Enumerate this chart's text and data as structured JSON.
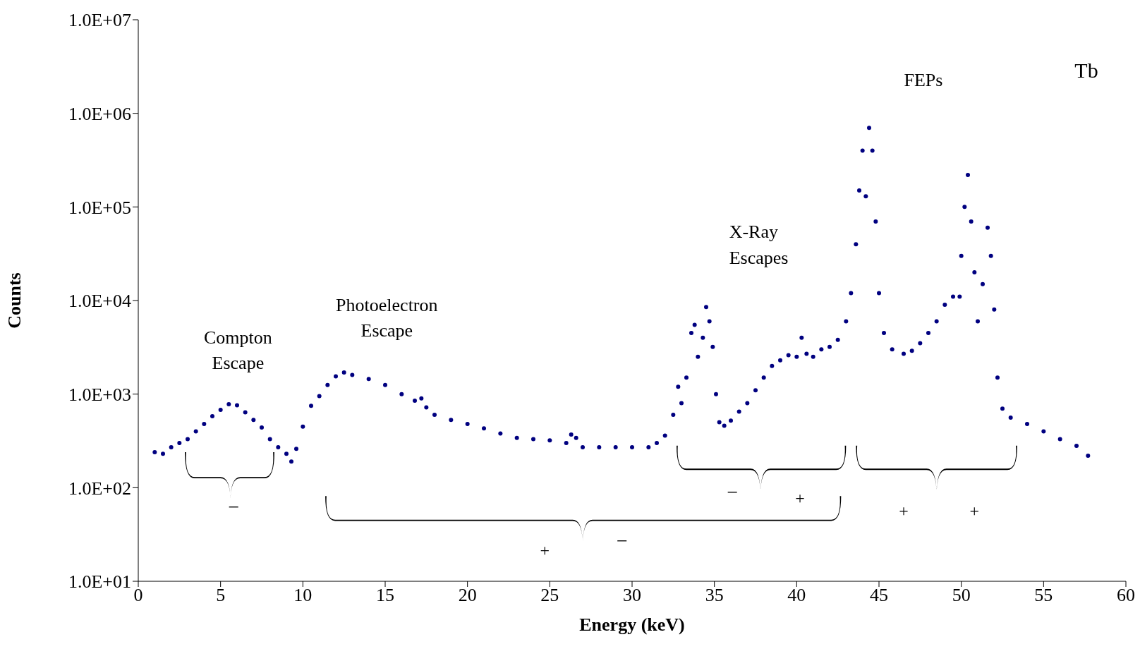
{
  "chart_data": {
    "type": "scatter",
    "xlabel": "Energy (keV)",
    "ylabel": "Counts",
    "log": "y",
    "grid": false,
    "legend": false,
    "marker": "circle",
    "xlim": [
      0,
      60
    ],
    "xticks": [
      0,
      5,
      10,
      15,
      20,
      25,
      30,
      35,
      40,
      45,
      50,
      55,
      60
    ],
    "ylim": [
      10,
      10000000
    ],
    "yticks": [
      {
        "value": 10,
        "label": "1.0E+01"
      },
      {
        "value": 100,
        "label": "1.0E+02"
      },
      {
        "value": 1000,
        "label": "1.0E+03"
      },
      {
        "value": 10000,
        "label": "1.0E+04"
      },
      {
        "value": 100000,
        "label": "1.0E+05"
      },
      {
        "value": 1000000,
        "label": "1.0E+06"
      },
      {
        "value": 10000000,
        "label": "1.0E+07"
      }
    ],
    "annotations": [
      "Compton Escape",
      "Photoelectron Escape",
      "X-Ray Escapes",
      "FEPs",
      "Tb",
      "−",
      "+",
      "−",
      "−",
      "+",
      "+",
      "+"
    ],
    "series": [
      {
        "color": "#000080",
        "x": [
          1.0,
          1.5,
          2.0,
          2.5,
          3.0,
          3.5,
          4.0,
          4.5,
          5.0,
          5.5,
          6.0,
          6.5,
          7.0,
          7.5,
          8.0,
          8.5,
          9.0,
          9.3,
          9.6,
          10.0,
          10.5,
          11.0,
          11.5,
          12.0,
          12.5,
          13.0,
          14.0,
          15.0,
          16.0,
          16.8,
          17.2,
          17.5,
          18.0,
          19.0,
          20.0,
          21.0,
          22.0,
          23.0,
          24.0,
          25.0,
          26.0,
          26.3,
          26.6,
          27.0,
          28.0,
          29.0,
          30.0,
          31.0,
          31.5,
          32.0,
          32.5,
          32.8,
          33.0,
          33.3,
          33.6,
          33.8,
          34.0,
          34.3,
          34.5,
          34.7,
          34.9,
          35.1,
          35.3,
          35.6,
          36.0,
          36.5,
          37.0,
          37.5,
          38.0,
          38.5,
          39.0,
          39.5,
          40.0,
          40.3,
          40.6,
          41.0,
          41.5,
          42.0,
          42.5,
          43.0,
          43.3,
          43.6,
          43.8,
          44.0,
          44.2,
          44.4,
          44.6,
          44.8,
          45.0,
          45.3,
          45.8,
          46.5,
          47.0,
          47.5,
          48.0,
          48.5,
          49.0,
          49.5,
          49.9,
          50.0,
          50.2,
          50.4,
          50.6,
          50.8,
          51.0,
          51.3,
          51.6,
          51.8,
          52.0,
          52.2,
          52.5,
          53.0,
          54.0,
          55.0,
          56.0,
          57.0,
          57.7
        ],
        "values": [
          240,
          230,
          270,
          300,
          330,
          400,
          480,
          580,
          680,
          780,
          760,
          640,
          530,
          440,
          330,
          270,
          230,
          190,
          260,
          450,
          750,
          950,
          1250,
          1550,
          1700,
          1600,
          1450,
          1250,
          1000,
          850,
          900,
          720,
          600,
          530,
          480,
          430,
          380,
          340,
          330,
          320,
          300,
          370,
          340,
          270,
          270,
          270,
          270,
          270,
          300,
          360,
          600,
          1200,
          800,
          1500,
          4500,
          5500,
          2500,
          4000,
          8500,
          6000,
          3200,
          1000,
          500,
          460,
          520,
          650,
          800,
          1100,
          1500,
          2000,
          2300,
          2600,
          2500,
          4000,
          2700,
          2500,
          3000,
          3200,
          3800,
          6000,
          12000,
          40000,
          150000,
          400000,
          130000,
          700000,
          400000,
          70000,
          12000,
          4500,
          3000,
          2700,
          2900,
          3500,
          4500,
          6000,
          9000,
          11000,
          11000,
          30000,
          100000,
          220000,
          70000,
          20000,
          6000,
          15000,
          60000,
          30000,
          8000,
          1500,
          700,
          560,
          480,
          400,
          330,
          280,
          220
        ]
      }
    ]
  }
}
